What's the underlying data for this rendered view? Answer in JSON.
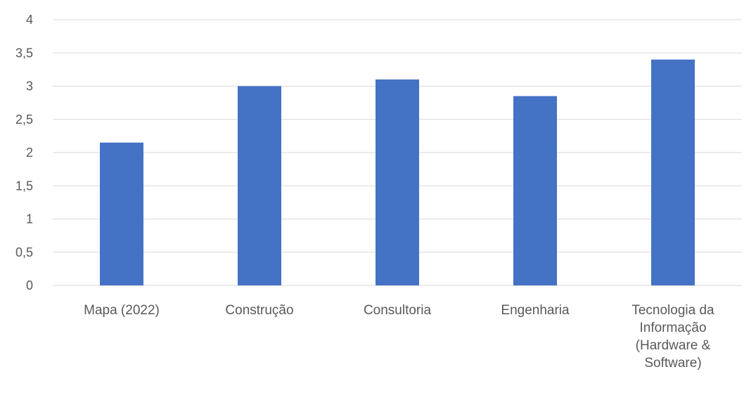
{
  "chart_data": {
    "type": "bar",
    "title": "",
    "xlabel": "",
    "ylabel": "",
    "categories": [
      "Mapa (2022)",
      "Construção",
      "Consultoria",
      "Engenharia",
      "Tecnologia da Informação (Hardware & Software)"
    ],
    "category_label_lines": [
      [
        "Mapa (2022)"
      ],
      [
        "Construção"
      ],
      [
        "Consultoria"
      ],
      [
        "Engenharia"
      ],
      [
        "Tecnologia da",
        "Informação",
        "(Hardware &",
        "Software)"
      ]
    ],
    "values": [
      2.15,
      3.0,
      3.1,
      2.85,
      3.4
    ],
    "ylim": [
      0,
      4
    ],
    "yticks": [
      0,
      0.5,
      1,
      1.5,
      2,
      2.5,
      3,
      3.5,
      4
    ],
    "ytick_labels": [
      "0",
      "0,5",
      "1",
      "1,5",
      "2",
      "2,5",
      "3",
      "3,5",
      "4"
    ],
    "grid": true,
    "legend": "none",
    "bar_color": "#4472c4",
    "grid_color": "#d9d9d9",
    "text_color": "#595959"
  }
}
